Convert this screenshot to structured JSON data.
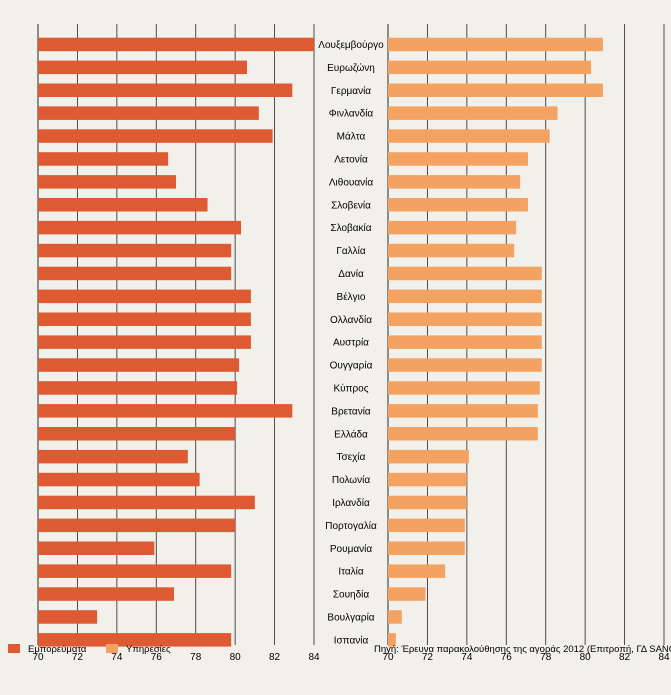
{
  "chart_data": [
    {
      "type": "bar",
      "orientation": "horizontal",
      "panel": "left",
      "xlim": [
        70,
        84
      ],
      "ticks": [
        70,
        72,
        74,
        76,
        78,
        80,
        82,
        84
      ],
      "grid": true,
      "series": [
        {
          "name": "Εμπορεύματα",
          "color": "#dd5a33",
          "values": [
            84,
            80.6,
            82.9,
            81.2,
            81.9,
            76.6,
            77,
            78.6,
            80.3,
            79.8,
            79.8,
            80.8,
            80.8,
            80.8,
            80.2,
            80.1,
            82.9,
            80,
            77.6,
            78.2,
            81,
            80,
            75.9,
            79.8,
            76.9,
            73,
            79.8
          ]
        }
      ]
    },
    {
      "type": "bar",
      "orientation": "horizontal",
      "panel": "right",
      "xlim": [
        70,
        84
      ],
      "ticks": [
        70,
        72,
        74,
        76,
        78,
        80,
        82,
        84
      ],
      "grid": true,
      "series": [
        {
          "name": "Υπηρεσίες",
          "color": "#f4a261",
          "values": [
            80.9,
            80.3,
            80.9,
            78.6,
            78.2,
            77.1,
            76.7,
            77.1,
            76.5,
            76.4,
            77.8,
            77.8,
            77.8,
            77.8,
            77.8,
            77.7,
            77.6,
            77.6,
            74.1,
            74,
            74,
            73.9,
            73.9,
            72.9,
            71.9,
            70.7,
            70.4
          ]
        }
      ]
    }
  ],
  "countries": [
    "Λουξεμβούργο",
    "Ευρωζώνη",
    "Γερμανία",
    "Φινλανδία",
    "Μάλτα",
    "Λετονία",
    "Λιθουανία",
    "Σλοβενία",
    "Σλοβακία",
    "Γαλλία",
    "Δανία",
    "Βέλγιο",
    "Ολλανδία",
    "Αυστρία",
    "Ουγγαρία",
    "Κύπρος",
    "Βρετανία",
    "Ελλάδα",
    "Τσεχία",
    "Πολωνία",
    "Ιρλανδία",
    "Πορτογαλία",
    "Ρουμανία",
    "Ιταλία",
    "Σουηδία",
    "Βουλγαρία",
    "Ισπανία"
  ],
  "legend": {
    "goods": {
      "label": "Εμπορεύματα",
      "color": "#dd5a33"
    },
    "services": {
      "label": "Υπηρεσίες",
      "color": "#f4a261"
    }
  },
  "source": "Πηγή: Έρευνα παρακολούθησης της αγοράς 2012 (Επιτροπή, ΓΔ SANCO)"
}
